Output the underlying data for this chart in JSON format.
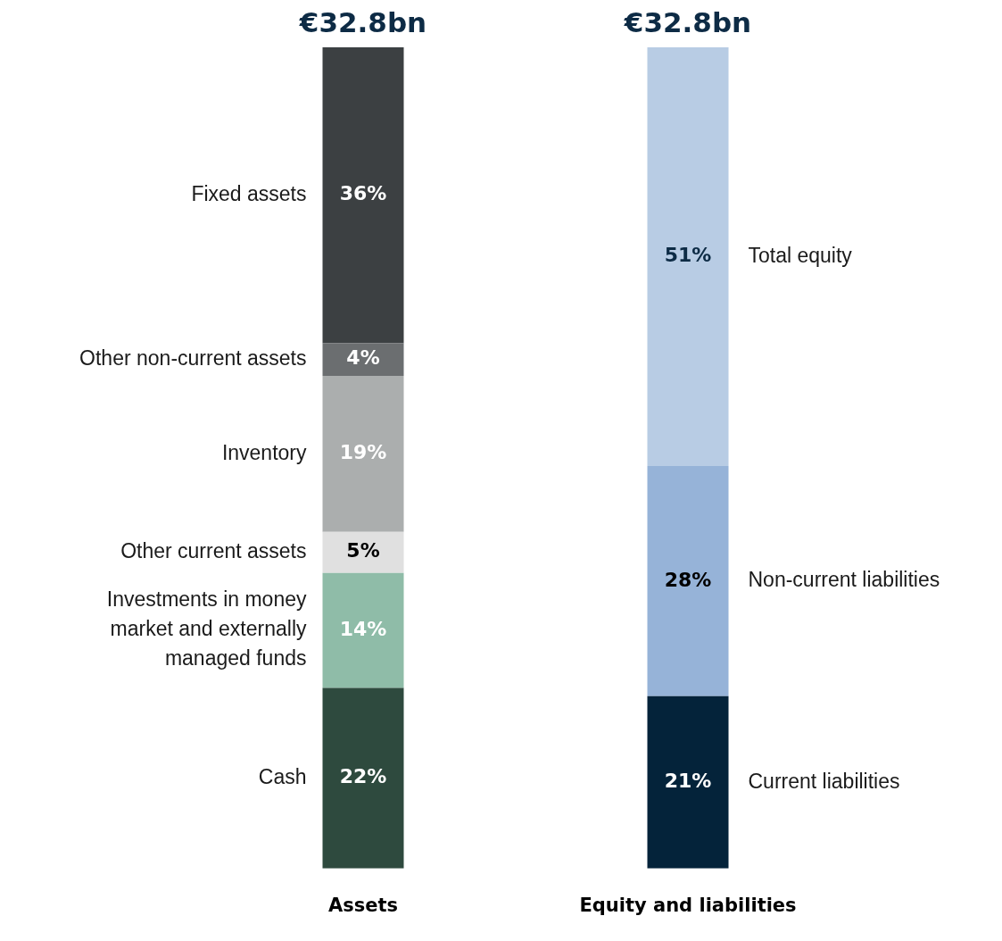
{
  "chart_data": {
    "type": "bar",
    "stacked": true,
    "categories": [
      "Assets",
      "Equity and liabilities"
    ],
    "annotations": [
      "€32.8bn",
      "€32.8bn"
    ],
    "series": [
      {
        "name": "Cash",
        "color": "#2e4a3e",
        "values": [
          22,
          null
        ],
        "value_labels": [
          "22%",
          null
        ]
      },
      {
        "name": "Investments in money market and externally managed funds",
        "color": "#8fbca8",
        "values": [
          14,
          null
        ],
        "value_labels": [
          "14%",
          null
        ]
      },
      {
        "name": "Other current assets",
        "color": "#e0e0e0",
        "values": [
          5,
          null
        ],
        "value_labels": [
          "5%",
          null
        ]
      },
      {
        "name": "Inventory",
        "color": "#abaeae",
        "values": [
          19,
          null
        ],
        "value_labels": [
          "19%",
          null
        ]
      },
      {
        "name": "Other non-current assets",
        "color": "#6b6e70",
        "values": [
          4,
          null
        ],
        "value_labels": [
          "4%",
          null
        ]
      },
      {
        "name": "Fixed assets",
        "color": "#3c4042",
        "values": [
          36,
          null
        ],
        "value_labels": [
          "36%",
          null
        ]
      },
      {
        "name": "Current liabilities",
        "color": "#04233a",
        "values": [
          null,
          21
        ],
        "value_labels": [
          null,
          "21%"
        ]
      },
      {
        "name": "Non-current liabilities",
        "color": "#96b3d8",
        "values": [
          null,
          28
        ],
        "value_labels": [
          null,
          "28%"
        ]
      },
      {
        "name": "Total equity",
        "color": "#b8cce4",
        "values": [
          null,
          51
        ],
        "value_labels": [
          null,
          "51%"
        ]
      }
    ]
  }
}
